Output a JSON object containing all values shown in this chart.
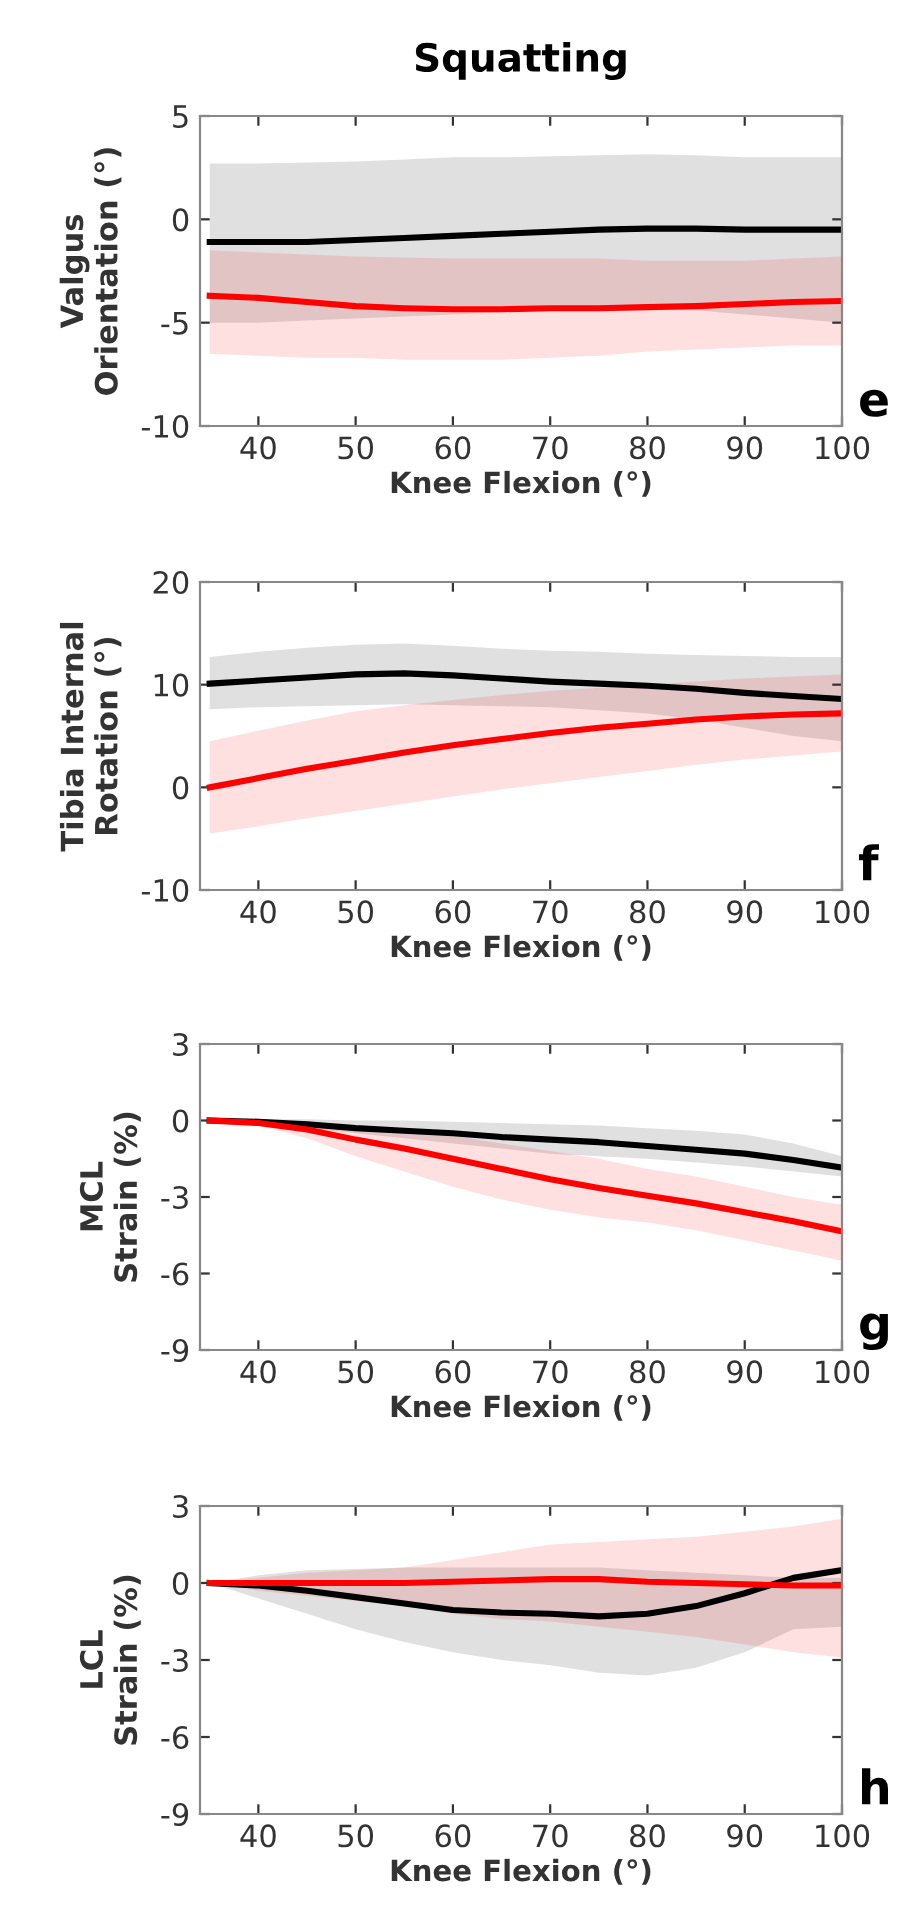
{
  "chart_data": [
    {
      "type": "line",
      "title": "Squatting",
      "ylabel": "Valgus\nOrientation (°)",
      "xlabel": "Knee Flexion (°)",
      "annotations": [
        "e"
      ],
      "x": [
        35,
        40,
        45,
        50,
        55,
        60,
        65,
        70,
        75,
        80,
        85,
        90,
        95,
        100
      ],
      "xlim": [
        34,
        100
      ],
      "xticks": [
        40,
        50,
        60,
        70,
        80,
        90,
        100
      ],
      "ylim": [
        -10,
        5
      ],
      "yticks": [
        -10,
        -5,
        0,
        5
      ],
      "grid": false,
      "legend": false,
      "marker": "none",
      "line_style": "solid",
      "series": [
        {
          "color": "#000000",
          "values": [
            -1.1,
            -1.1,
            -1.1,
            -1.0,
            -0.9,
            -0.8,
            -0.7,
            -0.6,
            -0.5,
            -0.45,
            -0.45,
            -0.5,
            -0.5,
            -0.5
          ],
          "upper": [
            2.7,
            2.7,
            2.75,
            2.8,
            2.9,
            3.0,
            3.0,
            3.05,
            3.1,
            3.15,
            3.1,
            3.0,
            3.0,
            3.0
          ],
          "lower": [
            -5.0,
            -5.0,
            -4.9,
            -4.8,
            -4.7,
            -4.6,
            -4.5,
            -4.4,
            -4.3,
            -4.3,
            -4.4,
            -4.6,
            -4.8,
            -5.0
          ]
        },
        {
          "color": "#ff0000",
          "values": [
            -3.7,
            -3.8,
            -4.0,
            -4.2,
            -4.3,
            -4.35,
            -4.35,
            -4.3,
            -4.3,
            -4.25,
            -4.2,
            -4.1,
            -4.0,
            -3.95
          ],
          "upper": [
            -1.5,
            -1.6,
            -1.7,
            -1.8,
            -1.85,
            -1.9,
            -1.9,
            -1.9,
            -1.9,
            -2.0,
            -2.0,
            -2.0,
            -1.9,
            -1.8
          ],
          "lower": [
            -6.5,
            -6.6,
            -6.7,
            -6.7,
            -6.8,
            -6.8,
            -6.8,
            -6.7,
            -6.6,
            -6.4,
            -6.3,
            -6.2,
            -6.1,
            -6.1
          ]
        }
      ]
    },
    {
      "type": "line",
      "ylabel": "Tibia Internal\nRotation (°)",
      "xlabel": "Knee Flexion (°)",
      "annotations": [
        "f"
      ],
      "x": [
        35,
        40,
        45,
        50,
        55,
        60,
        65,
        70,
        75,
        80,
        85,
        90,
        95,
        100
      ],
      "xlim": [
        34,
        100
      ],
      "xticks": [
        40,
        50,
        60,
        70,
        80,
        90,
        100
      ],
      "ylim": [
        -10,
        20
      ],
      "yticks": [
        -10,
        0,
        10,
        20
      ],
      "grid": false,
      "legend": false,
      "marker": "none",
      "line_style": "solid",
      "series": [
        {
          "color": "#000000",
          "values": [
            10.1,
            10.4,
            10.7,
            11.0,
            11.1,
            10.9,
            10.6,
            10.3,
            10.1,
            9.9,
            9.6,
            9.2,
            8.9,
            8.6
          ],
          "upper": [
            12.7,
            13.2,
            13.6,
            13.9,
            14.0,
            13.8,
            13.5,
            13.3,
            13.2,
            13.0,
            12.9,
            12.8,
            12.7,
            12.7
          ],
          "lower": [
            7.6,
            7.8,
            7.9,
            8.0,
            8.1,
            8.0,
            7.9,
            7.8,
            7.5,
            7.2,
            6.6,
            5.8,
            5.0,
            4.5
          ]
        },
        {
          "color": "#ff0000",
          "values": [
            0,
            0.9,
            1.8,
            2.6,
            3.4,
            4.1,
            4.7,
            5.3,
            5.8,
            6.2,
            6.6,
            6.9,
            7.1,
            7.2
          ],
          "upper": [
            4.5,
            5.5,
            6.5,
            7.4,
            8.0,
            8.5,
            9.0,
            9.4,
            9.7,
            10.0,
            10.3,
            10.6,
            10.8,
            11.0
          ],
          "lower": [
            -4.5,
            -3.8,
            -3.0,
            -2.3,
            -1.6,
            -0.9,
            -0.2,
            0.4,
            1.0,
            1.6,
            2.2,
            2.7,
            3.1,
            3.5
          ]
        }
      ]
    },
    {
      "type": "line",
      "ylabel": "MCL\nStrain (%)",
      "xlabel": "Knee Flexion (°)",
      "annotations": [
        "g"
      ],
      "x": [
        35,
        40,
        45,
        50,
        55,
        60,
        65,
        70,
        75,
        80,
        85,
        90,
        95,
        100
      ],
      "xlim": [
        34,
        100
      ],
      "xticks": [
        40,
        50,
        60,
        70,
        80,
        90,
        100
      ],
      "ylim": [
        -9,
        3
      ],
      "yticks": [
        -9,
        -6,
        -3,
        0,
        3
      ],
      "grid": false,
      "legend": false,
      "marker": "none",
      "line_style": "solid",
      "series": [
        {
          "color": "#000000",
          "values": [
            0,
            -0.05,
            -0.15,
            -0.3,
            -0.4,
            -0.5,
            -0.65,
            -0.75,
            -0.85,
            -1.0,
            -1.15,
            -1.3,
            -1.55,
            -1.85
          ],
          "upper": [
            0,
            0.05,
            0.05,
            0,
            0,
            -0.05,
            -0.1,
            -0.15,
            -0.2,
            -0.3,
            -0.4,
            -0.55,
            -0.9,
            -1.4
          ],
          "lower": [
            0,
            -0.1,
            -0.3,
            -0.5,
            -0.7,
            -0.9,
            -1.1,
            -1.3,
            -1.4,
            -1.5,
            -1.65,
            -1.8,
            -2.0,
            -2.2
          ]
        },
        {
          "color": "#ff0000",
          "values": [
            0,
            -0.1,
            -0.35,
            -0.75,
            -1.1,
            -1.5,
            -1.9,
            -2.3,
            -2.65,
            -2.95,
            -3.25,
            -3.6,
            -3.95,
            -4.35
          ],
          "upper": [
            0,
            0,
            -0.1,
            -0.2,
            -0.4,
            -0.6,
            -0.9,
            -1.2,
            -1.5,
            -1.9,
            -2.2,
            -2.6,
            -3.0,
            -3.3
          ],
          "lower": [
            0,
            -0.2,
            -0.7,
            -1.4,
            -2.0,
            -2.6,
            -3.1,
            -3.5,
            -3.8,
            -4.0,
            -4.3,
            -4.7,
            -5.1,
            -5.5
          ]
        }
      ]
    },
    {
      "type": "line",
      "ylabel": "LCL\nStrain (%)",
      "xlabel": "Knee Flexion (°)",
      "annotations": [
        "h"
      ],
      "x": [
        35,
        40,
        45,
        50,
        55,
        60,
        65,
        70,
        75,
        80,
        85,
        90,
        95,
        100
      ],
      "xlim": [
        34,
        100
      ],
      "xticks": [
        40,
        50,
        60,
        70,
        80,
        90,
        100
      ],
      "ylim": [
        -9,
        3
      ],
      "yticks": [
        -9,
        -6,
        -3,
        0,
        3
      ],
      "grid": false,
      "legend": false,
      "marker": "none",
      "line_style": "solid",
      "series": [
        {
          "color": "#000000",
          "values": [
            0,
            -0.1,
            -0.3,
            -0.55,
            -0.8,
            -1.05,
            -1.15,
            -1.2,
            -1.3,
            -1.2,
            -0.9,
            -0.4,
            0.2,
            0.5
          ],
          "upper": [
            0,
            0.3,
            0.5,
            0.55,
            0.6,
            0.6,
            0.6,
            0.6,
            0.6,
            0.5,
            0.4,
            0.3,
            0.2,
            0.2
          ],
          "lower": [
            0,
            -0.6,
            -1.2,
            -1.8,
            -2.3,
            -2.7,
            -3.0,
            -3.2,
            -3.5,
            -3.6,
            -3.3,
            -2.7,
            -1.8,
            -1.7
          ]
        },
        {
          "color": "#ff0000",
          "values": [
            0,
            0,
            0,
            0,
            0,
            0.05,
            0.1,
            0.15,
            0.15,
            0.05,
            0,
            -0.05,
            -0.1,
            -0.1
          ],
          "upper": [
            0,
            0.2,
            0.4,
            0.5,
            0.6,
            0.9,
            1.2,
            1.5,
            1.6,
            1.7,
            1.8,
            2.0,
            2.2,
            2.5
          ],
          "lower": [
            0,
            -0.3,
            -0.5,
            -0.7,
            -0.9,
            -1.2,
            -1.4,
            -1.5,
            -1.7,
            -1.9,
            -2.1,
            -2.4,
            -2.7,
            -2.9
          ]
        }
      ]
    }
  ]
}
